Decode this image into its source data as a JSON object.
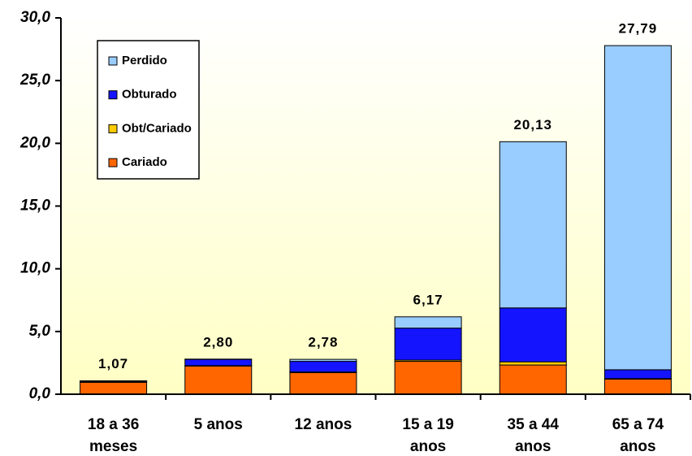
{
  "chart_data": {
    "type": "stacked_bar",
    "categories": [
      [
        "18 a 36",
        "meses"
      ],
      [
        "5 anos"
      ],
      [
        "12 anos"
      ],
      [
        "15 a 19",
        "anos"
      ],
      [
        "35 a 44",
        "anos"
      ],
      [
        "65 a 74",
        "anos"
      ]
    ],
    "series": [
      {
        "name": "Cariado",
        "color": "#ff6600",
        "values": [
          0.95,
          2.25,
          1.72,
          2.62,
          2.33,
          1.2
        ]
      },
      {
        "name": "Obt/Cariado",
        "color": "#ffcc00",
        "values": [
          0.02,
          0.03,
          0.05,
          0.1,
          0.25,
          0.05
        ]
      },
      {
        "name": "Obturado",
        "color": "#1414ff",
        "values": [
          0.08,
          0.5,
          0.85,
          2.55,
          4.3,
          0.7
        ]
      },
      {
        "name": "Perdido",
        "color": "#99ccff",
        "values": [
          0.02,
          0.02,
          0.16,
          0.9,
          13.25,
          25.84
        ]
      }
    ],
    "totals": [
      1.07,
      2.8,
      2.78,
      6.17,
      20.13,
      27.79
    ],
    "total_labels": [
      "1,07",
      "2,80",
      "2,78",
      "6,17",
      "20,13",
      "27,79"
    ],
    "ylim": [
      0,
      30
    ],
    "yticks": [
      {
        "value": 0,
        "label": "0,0"
      },
      {
        "value": 5,
        "label": "5,0"
      },
      {
        "value": 10,
        "label": "10,0"
      },
      {
        "value": 15,
        "label": "15,0"
      },
      {
        "value": 20,
        "label": "20,0"
      },
      {
        "value": 25,
        "label": "25,0"
      },
      {
        "value": 30,
        "label": "30,0"
      }
    ],
    "legend": "upper left"
  }
}
